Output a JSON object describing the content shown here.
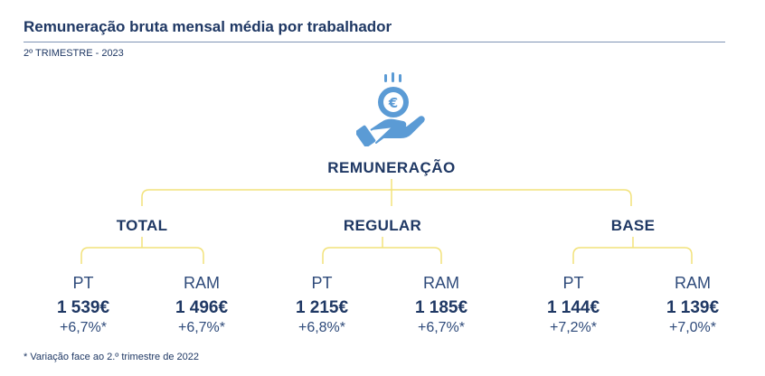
{
  "header": {
    "title": "Remuneração bruta mensal média por trabalhador",
    "subtitle": "2º TRIMESTRE - 2023"
  },
  "icon": {
    "name": "hand-with-euro-coin-icon",
    "color": "#5b9bd5"
  },
  "root": {
    "label": "REMUNERAÇÃO"
  },
  "groups": [
    {
      "label": "TOTAL",
      "items": [
        {
          "region": "PT",
          "value": "1 539€",
          "change": "+6,7%*"
        },
        {
          "region": "RAM",
          "value": "1 496€",
          "change": "+6,7%*"
        }
      ]
    },
    {
      "label": "REGULAR",
      "items": [
        {
          "region": "PT",
          "value": "1 215€",
          "change": "+6,8%*"
        },
        {
          "region": "RAM",
          "value": "1 185€",
          "change": "+6,7%*"
        }
      ]
    },
    {
      "label": "BASE",
      "items": [
        {
          "region": "PT",
          "value": "1 144€",
          "change": "+7,2%*"
        },
        {
          "region": "RAM",
          "value": "1 139€",
          "change": "+7,0%*"
        }
      ]
    }
  ],
  "footnote": "* Variação face ao 2.º trimestre de 2022",
  "colors": {
    "text": "#1f3864",
    "connector": "#f2e27a",
    "icon": "#5b9bd5",
    "rule": "#7f94b5"
  }
}
